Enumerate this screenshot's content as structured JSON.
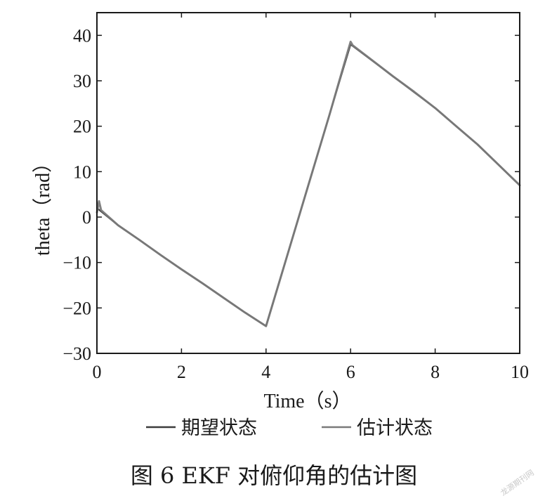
{
  "chart_data": {
    "type": "line",
    "xlabel": "Time（s）",
    "ylabel": "theta（rad）",
    "xlim": [
      0,
      10
    ],
    "ylim": [
      -30,
      45
    ],
    "xticks": [
      "0",
      "2",
      "4",
      "6",
      "8",
      "10"
    ],
    "yticks": [
      "−30",
      "−20",
      "−10",
      "0",
      "10",
      "20",
      "30",
      "40"
    ],
    "grid": false,
    "legend_placement": "bottom",
    "series": [
      {
        "name": "期望状态",
        "color": "#3c3c3c",
        "x": [
          0,
          0.5,
          1,
          1.5,
          2,
          2.5,
          3,
          3.5,
          4,
          4.5,
          5,
          5.5,
          6,
          6.5,
          7,
          7.5,
          8,
          8.5,
          9,
          9.5,
          10
        ],
        "y": [
          2,
          -1.8,
          -5,
          -8.3,
          -11.5,
          -14.6,
          -17.8,
          -21,
          -24,
          -8.5,
          7,
          22.5,
          38,
          34.5,
          31,
          27.5,
          24,
          20,
          16,
          11.5,
          7
        ]
      },
      {
        "name": "估计状态",
        "color": "#7a7a7a",
        "x": [
          0,
          0.05,
          0.1,
          0.5,
          1,
          1.5,
          2,
          2.5,
          3,
          3.5,
          4,
          4.5,
          5,
          5.5,
          6,
          6.05,
          6.5,
          7,
          7.5,
          8,
          8.5,
          9,
          9.5,
          10
        ],
        "y": [
          1,
          3.5,
          1.5,
          -1.8,
          -5,
          -8.3,
          -11.5,
          -14.6,
          -17.8,
          -21,
          -24,
          -8.5,
          7,
          22.5,
          38.6,
          37.8,
          34.6,
          31,
          27.6,
          24,
          20,
          16,
          11.5,
          7
        ]
      }
    ]
  },
  "legend": {
    "expected_label": "期望状态",
    "estimated_label": "估计状态"
  },
  "caption": "图 6   EKF 对俯仰角的估计图",
  "watermark": "龙源期刊网"
}
